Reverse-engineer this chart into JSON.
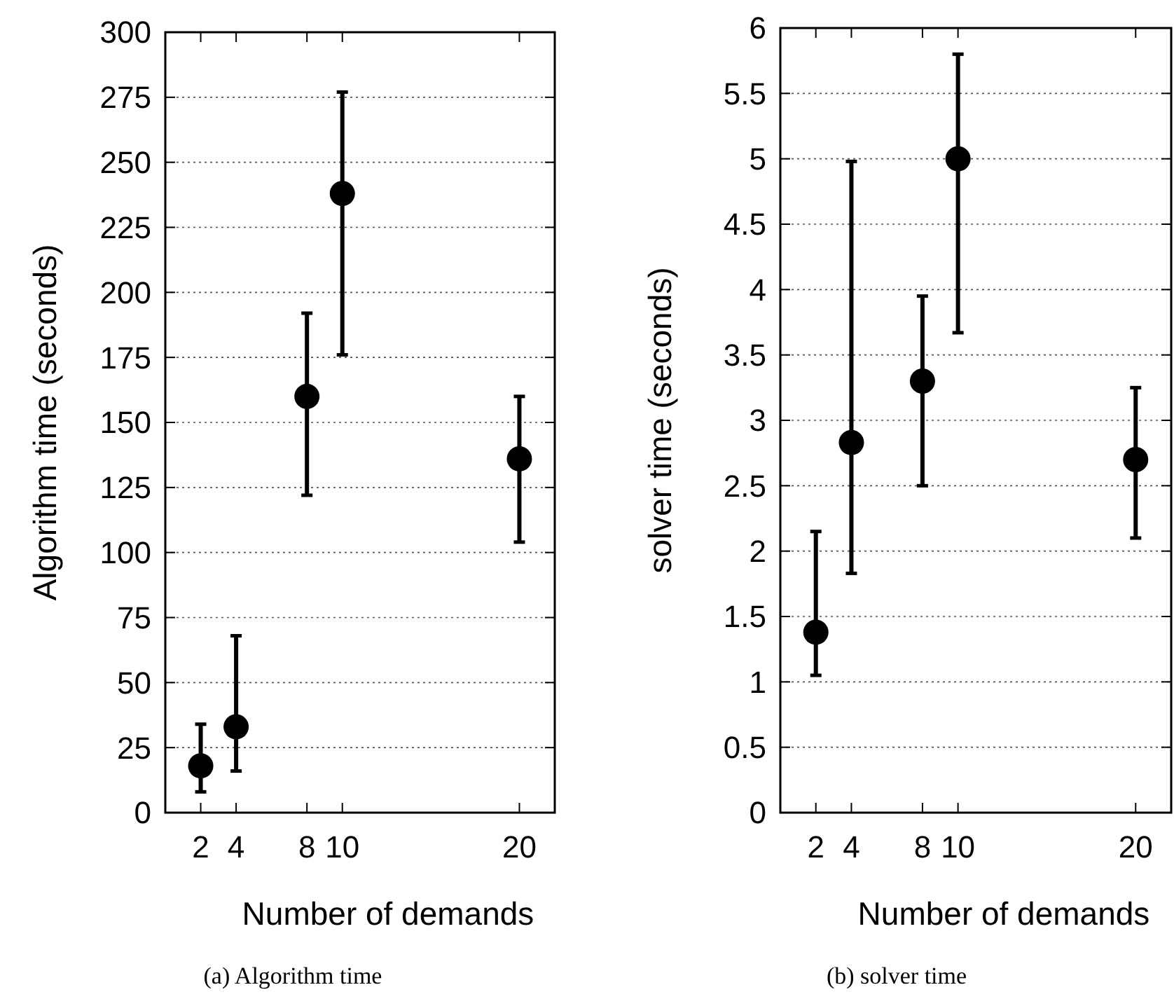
{
  "chart_data": [
    {
      "type": "scatter",
      "xlabel": "Number of demands",
      "ylabel": "Algorithm time (seconds)",
      "annotations": [
        "(a) Algorithm time"
      ],
      "x": [
        2,
        4,
        8,
        10,
        20
      ],
      "xlim": [
        0,
        22
      ],
      "xticks": [
        2,
        4,
        8,
        10,
        20
      ],
      "ylim": [
        0,
        300
      ],
      "yticks": [
        0,
        25,
        50,
        75,
        100,
        125,
        150,
        175,
        200,
        225,
        250,
        275,
        300
      ],
      "grid": "y",
      "marker": "circle",
      "series": [
        {
          "color": "#000000",
          "values": [
            18,
            33,
            160,
            238,
            136
          ],
          "errors": [
            [
              8,
              34
            ],
            [
              16,
              68
            ],
            [
              122,
              192
            ],
            [
              176,
              277
            ],
            [
              104,
              160
            ]
          ]
        }
      ]
    },
    {
      "type": "scatter",
      "xlabel": "Number of demands",
      "ylabel": "solver time (seconds)",
      "annotations": [
        "(b) solver time"
      ],
      "x": [
        2,
        4,
        8,
        10,
        20
      ],
      "xlim": [
        0,
        22
      ],
      "xticks": [
        2,
        4,
        8,
        10,
        20
      ],
      "ylim": [
        0,
        6
      ],
      "yticks": [
        0,
        0.5,
        1,
        1.5,
        2,
        2.5,
        3,
        3.5,
        4,
        4.5,
        5,
        5.5,
        6
      ],
      "grid": "y",
      "marker": "circle",
      "series": [
        {
          "color": "#000000",
          "values": [
            1.38,
            2.83,
            3.3,
            5.0,
            2.7
          ],
          "errors": [
            [
              1.05,
              2.15
            ],
            [
              1.83,
              4.98
            ],
            [
              2.5,
              3.95
            ],
            [
              3.67,
              5.8
            ],
            [
              2.1,
              3.25
            ]
          ]
        }
      ]
    }
  ]
}
